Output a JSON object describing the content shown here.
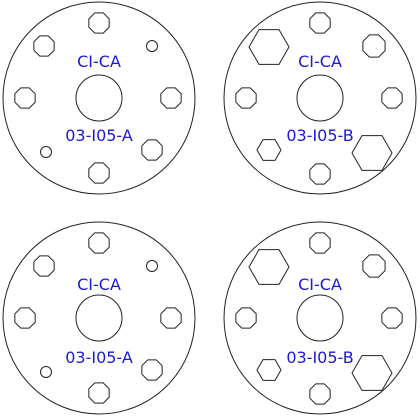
{
  "discs": [
    {
      "top_label": "CI-CA",
      "bottom_label": "03-I05-A",
      "variant": "A"
    },
    {
      "top_label": "CI-CA",
      "bottom_label": "03-I05-B",
      "variant": "B"
    },
    {
      "top_label": "CI-CA",
      "bottom_label": "03-I05-A",
      "variant": "A"
    },
    {
      "top_label": "CI-CA",
      "bottom_label": "03-I05-B",
      "variant": "B"
    }
  ],
  "colors": {
    "outline": "#222222",
    "label": "#1a1ad6",
    "background": "#ffffff"
  }
}
